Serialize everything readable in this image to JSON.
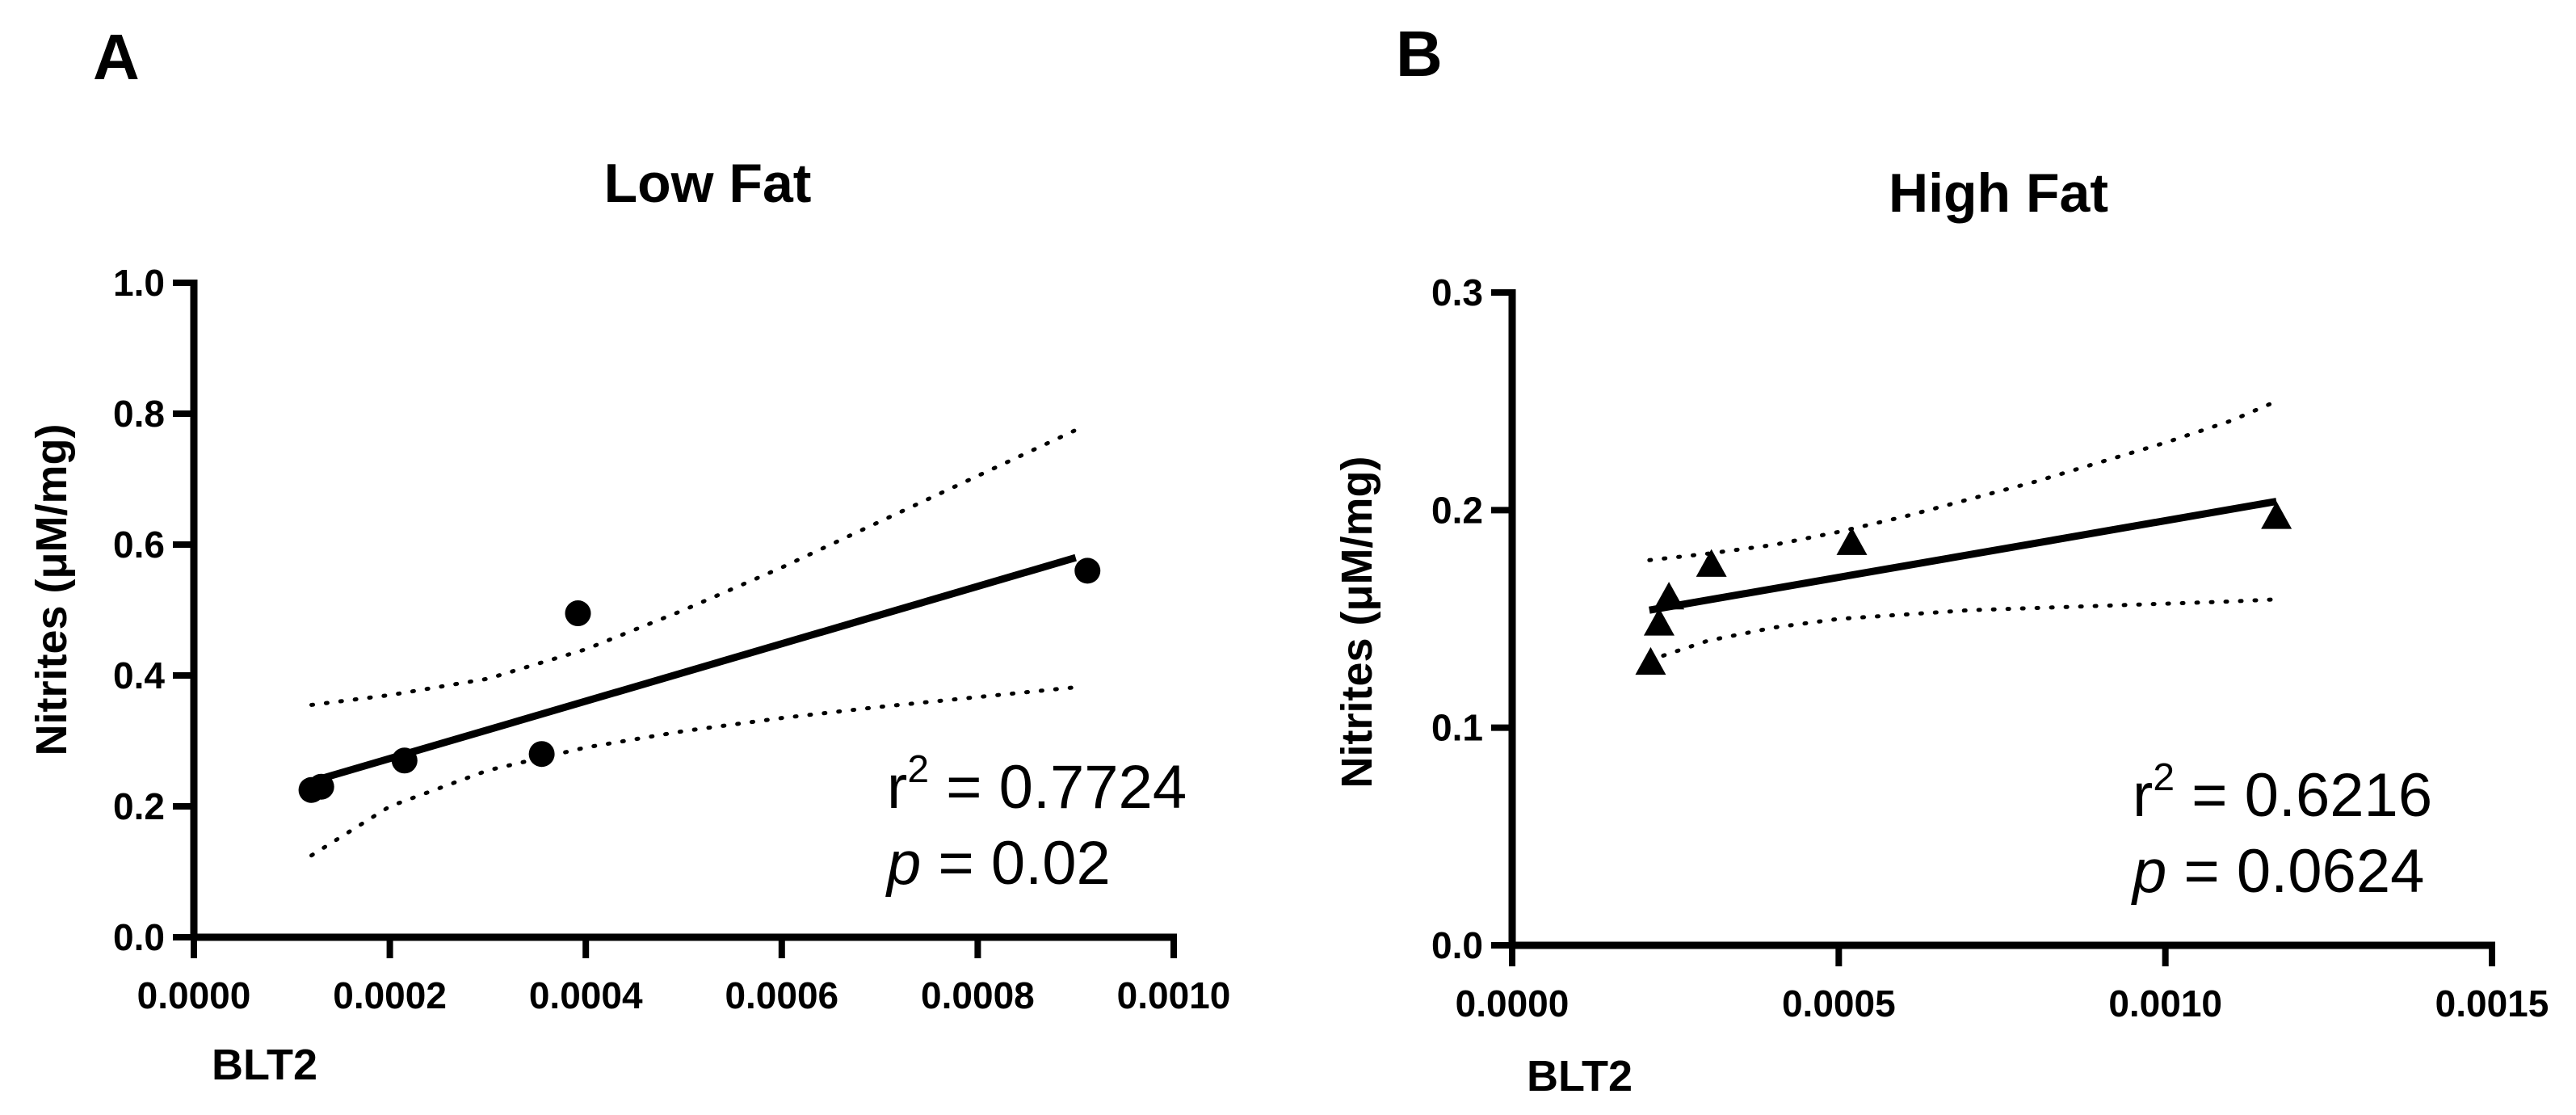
{
  "chart_data": [
    {
      "panel": "A",
      "type": "scatter",
      "title": "Low Fat",
      "xlabel": "BLT2",
      "ylabel": "Nitrites (μM/mg)",
      "xlim": [
        0,
        0.001
      ],
      "ylim": [
        0,
        1.0
      ],
      "xticks": [
        0,
        0.0002,
        0.0004,
        0.0006,
        0.0008,
        0.001
      ],
      "xtick_labels": [
        "0.0000",
        "0.0002",
        "0.0004",
        "0.0006",
        "0.0008",
        "0.0010"
      ],
      "yticks": [
        0,
        0.2,
        0.4,
        0.6,
        0.8,
        1.0
      ],
      "ytick_labels": [
        "0.0",
        "0.2",
        "0.4",
        "0.6",
        "0.8",
        "1.0"
      ],
      "marker": "circle",
      "points": [
        {
          "x": 0.00012,
          "y": 0.225
        },
        {
          "x": 0.00013,
          "y": 0.23
        },
        {
          "x": 0.000215,
          "y": 0.27
        },
        {
          "x": 0.000355,
          "y": 0.28
        },
        {
          "x": 0.000392,
          "y": 0.495
        },
        {
          "x": 0.000912,
          "y": 0.56
        }
      ],
      "fit_line": {
        "x": [
          0.00012,
          0.0009
        ],
        "y": [
          0.238,
          0.58
        ]
      },
      "ci_upper": {
        "x": [
          0.00012,
          0.0002,
          0.0003,
          0.0004,
          0.0005,
          0.0006,
          0.0007,
          0.0008,
          0.0009
        ],
        "y": [
          0.355,
          0.37,
          0.395,
          0.44,
          0.5,
          0.565,
          0.635,
          0.705,
          0.775
        ]
      },
      "ci_lower": {
        "x": [
          0.00012,
          0.0002,
          0.0003,
          0.0004,
          0.0005,
          0.0006,
          0.0007,
          0.0008,
          0.0009
        ],
        "y": [
          0.125,
          0.2,
          0.255,
          0.29,
          0.315,
          0.335,
          0.352,
          0.367,
          0.382
        ]
      },
      "stat_r2_prefix": "r",
      "stat_r2_sup": "2",
      "stat_r2_value": " = 0.7724",
      "stat_p_italic": "p",
      "stat_p_value": " = 0.02"
    },
    {
      "panel": "B",
      "type": "scatter",
      "title": "High Fat",
      "xlabel": "BLT2",
      "ylabel": "Nitrites (μM/mg)",
      "xlim": [
        0,
        0.0015
      ],
      "ylim": [
        0,
        0.3
      ],
      "xticks": [
        0,
        0.0005,
        0.001,
        0.0015
      ],
      "xtick_labels": [
        "0.0000",
        "0.0005",
        "0.0010",
        "0.0015"
      ],
      "yticks": [
        0,
        0.1,
        0.2,
        0.3
      ],
      "ytick_labels": [
        "0.0",
        "0.1",
        "0.2",
        "0.3"
      ],
      "marker": "triangle",
      "points": [
        {
          "x": 0.000212,
          "y": 0.13
        },
        {
          "x": 0.000225,
          "y": 0.148
        },
        {
          "x": 0.00024,
          "y": 0.16
        },
        {
          "x": 0.000305,
          "y": 0.175
        },
        {
          "x": 0.00052,
          "y": 0.185
        },
        {
          "x": 0.00117,
          "y": 0.197
        }
      ],
      "fit_line": {
        "x": [
          0.00021,
          0.00117
        ],
        "y": [
          0.154,
          0.204
        ]
      },
      "ci_upper": {
        "x": [
          0.00021,
          0.0003,
          0.0004,
          0.0005,
          0.0006,
          0.0007,
          0.0008,
          0.0009,
          0.001,
          0.0011,
          0.00117
        ],
        "y": [
          0.177,
          0.18,
          0.184,
          0.19,
          0.197,
          0.205,
          0.213,
          0.222,
          0.231,
          0.241,
          0.25
        ]
      },
      "ci_lower": {
        "x": [
          0.00021,
          0.0003,
          0.0004,
          0.0005,
          0.0006,
          0.0007,
          0.0008,
          0.0009,
          0.001,
          0.0011,
          0.00117
        ],
        "y": [
          0.131,
          0.14,
          0.146,
          0.15,
          0.152,
          0.154,
          0.155,
          0.156,
          0.157,
          0.158,
          0.159
        ]
      },
      "stat_r2_prefix": "r",
      "stat_r2_sup": "2",
      "stat_r2_value": " = 0.6216",
      "stat_p_italic": "p",
      "stat_p_value": " = 0.0624"
    }
  ]
}
